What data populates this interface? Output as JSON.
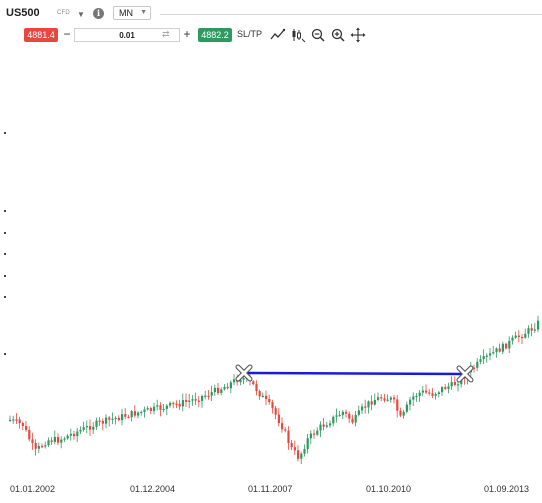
{
  "toolbar": {
    "symbol": "US500",
    "symbol_type": "CFD",
    "timeframe": "MN",
    "sell_price": "4881.4",
    "buy_price": "4882.2",
    "volume": "0.01",
    "minus": "−",
    "plus": "+",
    "sltp": "SL/TP",
    "icons": [
      "chevron-down-icon",
      "info-icon",
      "trendline-icon",
      "indicators-icon",
      "zoom-out-icon",
      "zoom-in-icon",
      "move-icon"
    ]
  },
  "colors": {
    "up": "#2f9a5f",
    "down": "#e8473d",
    "drawn_line": "#1a1adc"
  },
  "chart": {
    "x_labels": [
      "01.01.2002",
      "01.12.2004",
      "01.11.2007",
      "01.10.2010",
      "01.09.2013"
    ]
  }
}
